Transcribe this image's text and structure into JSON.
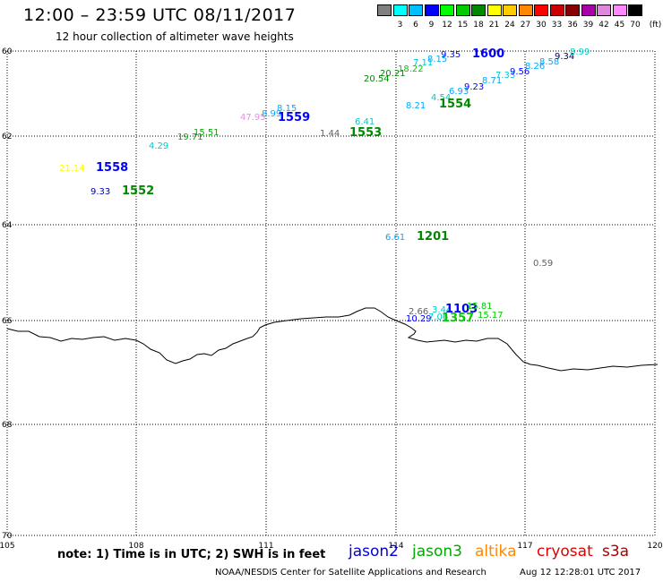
{
  "header": {
    "title": "12:00 – 23:59 UTC 08/11/2017",
    "subtitle": "12 hour collection of altimeter wave heights"
  },
  "colorbar": {
    "colors": [
      "#808080",
      "#00ffff",
      "#00bfff",
      "#0000ff",
      "#00ff00",
      "#00cc00",
      "#008800",
      "#ffff00",
      "#ffcc00",
      "#ff8800",
      "#ff0000",
      "#cc0000",
      "#880000",
      "#aa00aa",
      "#dd88dd",
      "#ff88ff",
      "#000000"
    ],
    "labels": [
      "3",
      "6",
      "9",
      "12",
      "15",
      "18",
      "21",
      "24",
      "27",
      "30",
      "33",
      "36",
      "39",
      "42",
      "45",
      "70"
    ],
    "unit": "(ft)"
  },
  "axes": {
    "lat_labels": [
      "60",
      "62",
      "64",
      "66",
      "68",
      "70"
    ],
    "lon_labels": [
      "105",
      "108",
      "111",
      "114",
      "117",
      "120"
    ]
  },
  "observations": [
    {
      "text": "21.14",
      "color": "#ffff00",
      "style": "sm"
    },
    {
      "text": "1558",
      "color": "#0000ff",
      "style": "big"
    },
    {
      "text": "9.33",
      "color": "#0000aa",
      "style": "sm"
    },
    {
      "text": "1552",
      "color": "#008800",
      "style": "big"
    },
    {
      "text": "4.29",
      "color": "#00cccc",
      "style": "sm"
    },
    {
      "text": "19.71",
      "color": "#00aa00",
      "style": "sm"
    },
    {
      "text": "15.51",
      "color": "#00aa00",
      "style": "sm"
    },
    {
      "text": "47.95",
      "color": "#ee88ee",
      "style": "sm"
    },
    {
      "text": "8.99",
      "color": "#00aaff",
      "style": "sm"
    },
    {
      "text": "8.15",
      "color": "#00aaff",
      "style": "sm"
    },
    {
      "text": "1559",
      "color": "#0000ff",
      "style": "big"
    },
    {
      "text": "1.44",
      "color": "#606060",
      "style": "sm"
    },
    {
      "text": "1553",
      "color": "#008800",
      "style": "big"
    },
    {
      "text": "6.41",
      "color": "#00cccc",
      "style": "sm"
    },
    {
      "text": "20.54",
      "color": "#008800",
      "style": "sm"
    },
    {
      "text": "20.21",
      "color": "#008800",
      "style": "sm"
    },
    {
      "text": "18.22",
      "color": "#00cc00",
      "style": "sm"
    },
    {
      "text": "7.11",
      "color": "#00cccc",
      "style": "sm"
    },
    {
      "text": "8.15",
      "color": "#00aaff",
      "style": "sm"
    },
    {
      "text": "9.35",
      "color": "#0000ff",
      "style": "sm"
    },
    {
      "text": "1600",
      "color": "#0000ff",
      "style": "big"
    },
    {
      "text": "8.21",
      "color": "#00aaff",
      "style": "sm"
    },
    {
      "text": "4.54",
      "color": "#00cccc",
      "style": "sm"
    },
    {
      "text": "1554",
      "color": "#008800",
      "style": "big"
    },
    {
      "text": "6.93",
      "color": "#00aaff",
      "style": "sm"
    },
    {
      "text": "9.23",
      "color": "#0000ff",
      "style": "sm"
    },
    {
      "text": "8.71",
      "color": "#00aaff",
      "style": "sm"
    },
    {
      "text": "7.33",
      "color": "#00cccc",
      "style": "sm"
    },
    {
      "text": "9.56",
      "color": "#0000ff",
      "style": "sm"
    },
    {
      "text": "8.26",
      "color": "#00aaff",
      "style": "sm"
    },
    {
      "text": "8.58",
      "color": "#00aaff",
      "style": "sm"
    },
    {
      "text": "9.34",
      "color": "#000066",
      "style": "sm"
    },
    {
      "text": "8.99",
      "color": "#00cccc",
      "style": "sm"
    },
    {
      "text": "6.61",
      "color": "#00aaff",
      "style": "sm"
    },
    {
      "text": "1201",
      "color": "#008800",
      "style": "big"
    },
    {
      "text": "0.59",
      "color": "#606060",
      "style": "sm"
    },
    {
      "text": "2.66",
      "color": "#606060",
      "style": "sm"
    },
    {
      "text": "3.44",
      "color": "#00cccc",
      "style": "sm"
    },
    {
      "text": "1103",
      "color": "#0000ff",
      "style": "big"
    },
    {
      "text": "15.81",
      "color": "#00cc00",
      "style": "sm"
    },
    {
      "text": "10.29",
      "color": "#0000ff",
      "style": "sm"
    },
    {
      "text": "7.06",
      "color": "#00cccc",
      "style": "sm"
    },
    {
      "text": "1357",
      "color": "#00cc00",
      "style": "big"
    },
    {
      "text": "15.17",
      "color": "#00cc00",
      "style": "sm"
    }
  ],
  "footer": {
    "note": "note:  1) Time is in UTC;  2) SWH is in feet",
    "satellites": [
      {
        "name": "jason2",
        "color": "#0000dd"
      },
      {
        "name": "jason3",
        "color": "#00aa00"
      },
      {
        "name": "altika",
        "color": "#ff8800"
      },
      {
        "name": "cryosat",
        "color": "#dd0000"
      },
      {
        "name": "s3a",
        "color": "#aa0000"
      }
    ],
    "credit": "NOAA/NESDIS Center for Satellite Applications and Research",
    "timestamp": "Aug 12 12:28:01 UTC 2017"
  }
}
